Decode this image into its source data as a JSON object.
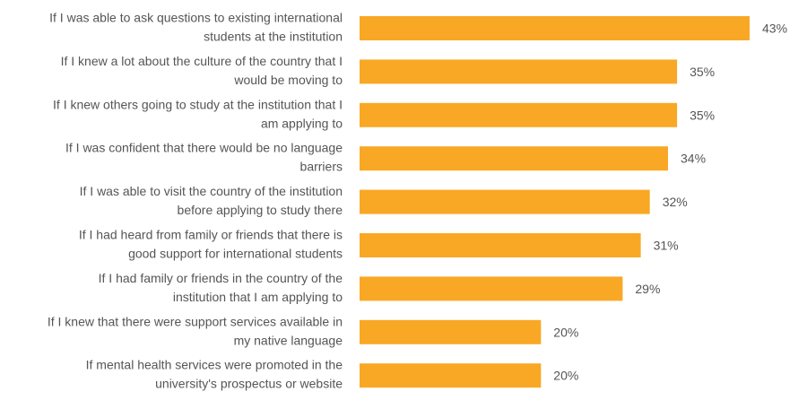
{
  "chart_data": {
    "type": "bar",
    "orientation": "horizontal",
    "title": "",
    "xlabel": "",
    "ylabel": "",
    "grid": false,
    "legend": "none",
    "bar_color": "#F9A825",
    "xlim": [
      0,
      43
    ],
    "value_suffix": "%",
    "categories": [
      [
        "If I was able to ask questions to existing international",
        "students at the institution"
      ],
      [
        "If I knew a lot about the culture of the country that I",
        "would be moving to"
      ],
      [
        "If I knew others going to study at the institution that I",
        "am applying to"
      ],
      [
        "If I was confident that there would be no language",
        "barriers"
      ],
      [
        "If I was able to visit the country of the institution",
        "before applying to study there"
      ],
      [
        "If I had heard from family or friends that there is",
        "good support for international students"
      ],
      [
        "If I had family or friends in the country of the",
        "institution that I am applying to"
      ],
      [
        "If I knew that there were support services available in",
        "my native language"
      ],
      [
        "If mental health services were promoted in the",
        "university's prospectus or website"
      ]
    ],
    "values": [
      43,
      35,
      35,
      34,
      32,
      31,
      29,
      20,
      20
    ],
    "value_labels": [
      "43%",
      "35%",
      "35%",
      "34%",
      "32%",
      "31%",
      "29%",
      "20%",
      "20%"
    ]
  }
}
